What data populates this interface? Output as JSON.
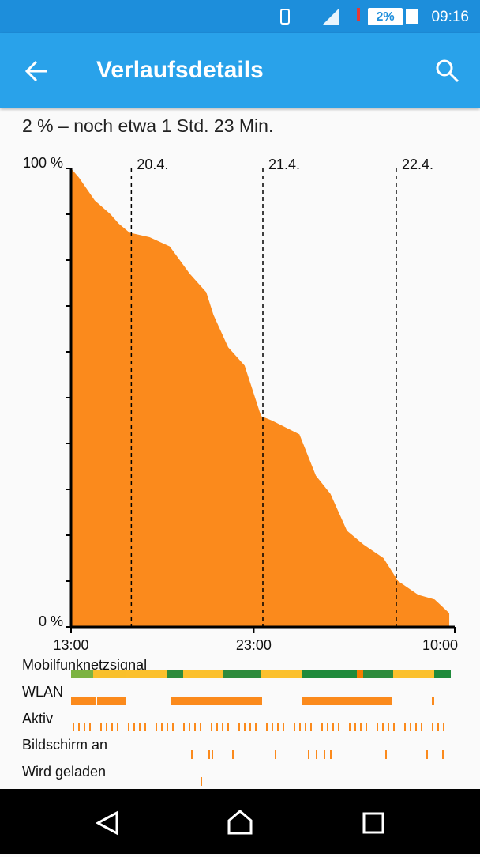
{
  "status_bar": {
    "battery": "2%",
    "time": "09:16"
  },
  "app_bar": {
    "title": "Verlaufsdetails"
  },
  "summary": "2 % – noch etwa 1 Std. 23 Min.",
  "chart": {
    "type": "area",
    "color": "#fb8a1c",
    "x": [
      0,
      0.43,
      1.3,
      2.16,
      2.6,
      3.2,
      4.3,
      5.4,
      6.5,
      7.4,
      7.8,
      8.6,
      9.5,
      10.4,
      11,
      12.5,
      13.4,
      14.2,
      15.1,
      16,
      17.1,
      17.9,
      19,
      19.9,
      20.7
    ],
    "values": [
      100,
      98,
      93,
      90,
      88,
      86,
      85,
      83,
      77,
      73,
      68,
      61,
      57,
      46,
      45,
      42,
      33,
      29,
      21,
      18,
      15,
      10,
      7,
      6,
      3
    ],
    "xlim": [
      0,
      21
    ],
    "ylim": [
      0,
      100
    ],
    "xticks": [
      {
        "value": 0,
        "label": "13:00"
      },
      {
        "value": 10,
        "label": "23:00"
      },
      {
        "value": 21,
        "label": "10:00"
      }
    ],
    "yticks": [
      {
        "value": 0,
        "label": "0 %"
      },
      {
        "value": 100,
        "label": "100 %"
      }
    ],
    "date_markers": [
      {
        "x": 3.3,
        "label": "20.4."
      },
      {
        "x": 10.5,
        "label": "21.4."
      },
      {
        "x": 17.8,
        "label": "22.4."
      }
    ]
  },
  "tracks": [
    "Mobilfunknetzsignal",
    "WLAN",
    "Aktiv",
    "Bildschirm an",
    "Wird geladen"
  ]
}
